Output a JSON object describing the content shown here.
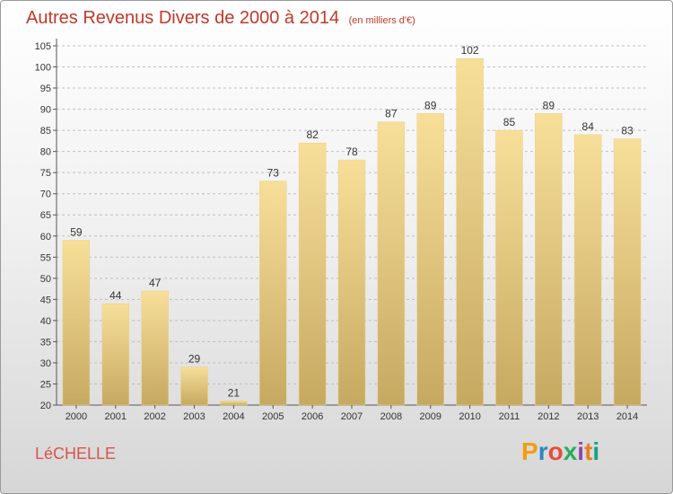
{
  "title": "Autres Revenus Divers de 2000 à 2014",
  "subtitle": "(en milliers d'€)",
  "commune": "LéCHELLE",
  "brand": {
    "letters": [
      "P",
      "r",
      "o",
      "x",
      "i",
      "t",
      "i"
    ],
    "colors": [
      "#f39c12",
      "#2e86c1",
      "#e74c3c",
      "#27ae60",
      "#8e44ad",
      "#e67e22",
      "#16a085"
    ]
  },
  "colors": {
    "bar_top": "#f7df9a",
    "bar_bottom": "#c6a961",
    "axis": "#555555",
    "grid": "#bfbfbf"
  },
  "chart_data": {
    "type": "bar",
    "categories": [
      "2000",
      "2001",
      "2002",
      "2003",
      "2004",
      "2005",
      "2006",
      "2007",
      "2008",
      "2009",
      "2010",
      "2011",
      "2012",
      "2013",
      "2014"
    ],
    "values": [
      59,
      44,
      47,
      29,
      21,
      73,
      82,
      78,
      87,
      89,
      102,
      85,
      89,
      84,
      83
    ],
    "ylim": [
      20,
      105
    ],
    "yticks": [
      20,
      25,
      30,
      35,
      40,
      45,
      50,
      55,
      60,
      65,
      70,
      75,
      80,
      85,
      90,
      95,
      100,
      105
    ],
    "title": "Autres Revenus Divers de 2000 à 2014",
    "xlabel": "",
    "ylabel": "",
    "grid": true
  }
}
